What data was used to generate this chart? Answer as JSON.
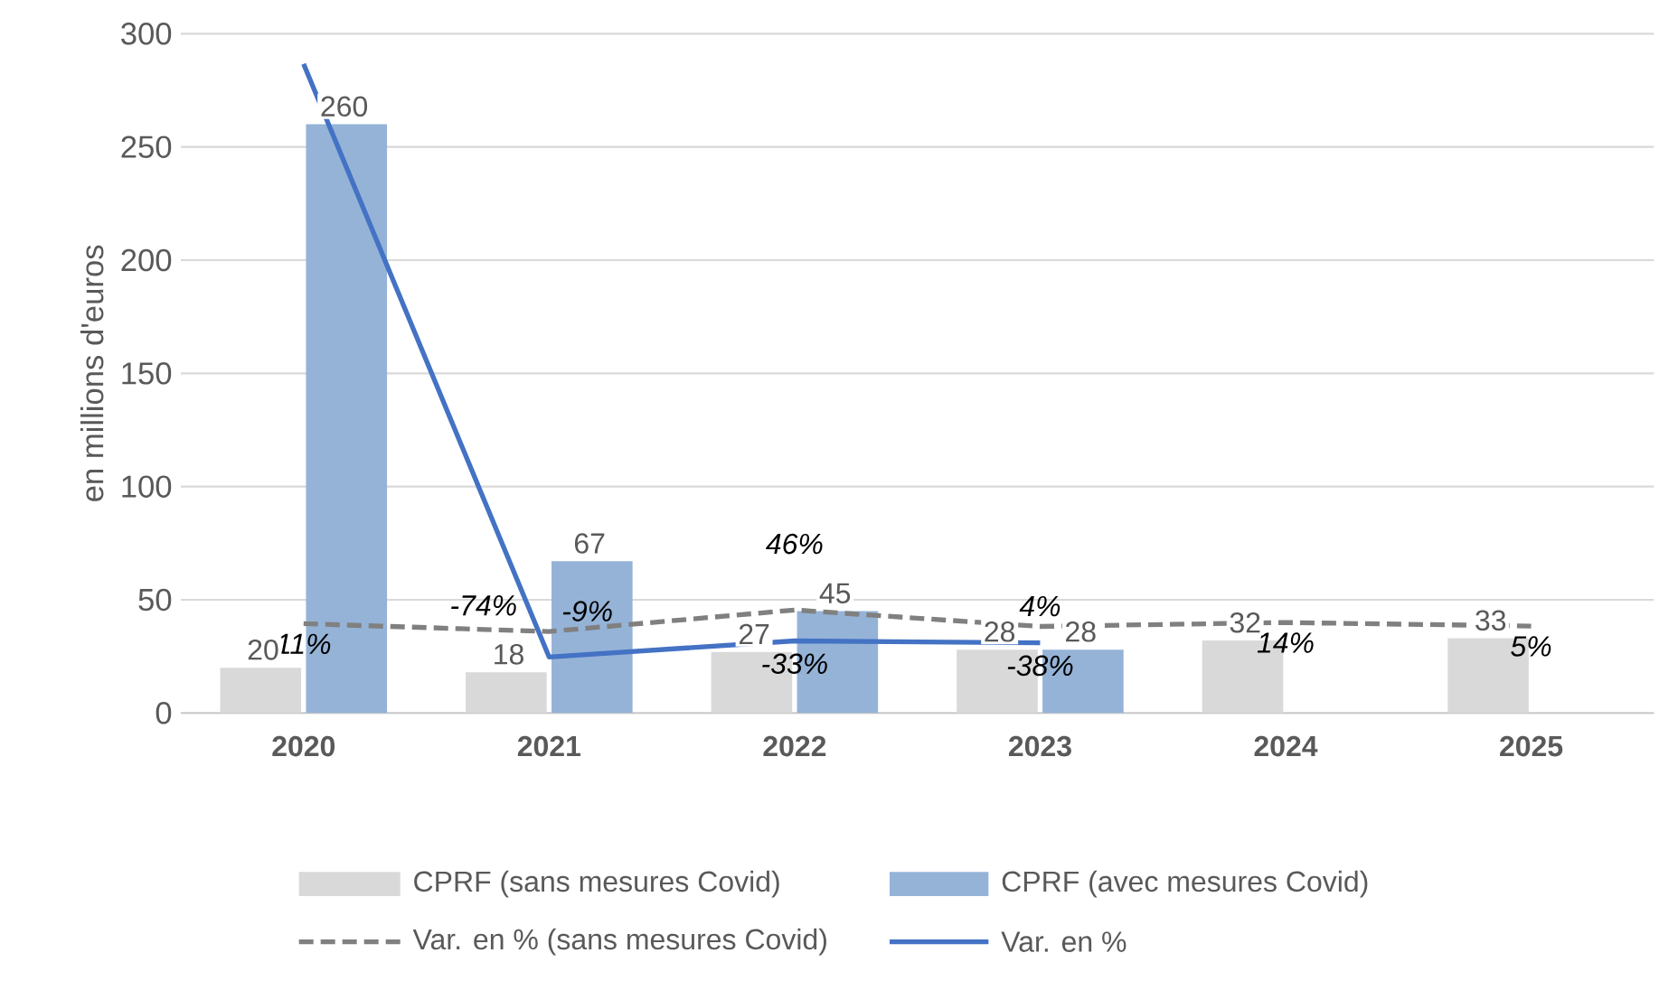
{
  "chart_data": {
    "type": "bar",
    "ylabel": "en millions d'euros",
    "categories": [
      "2020",
      "2021",
      "2022",
      "2023",
      "2024",
      "2025"
    ],
    "ylim": [
      0,
      300
    ],
    "yticks": [
      0,
      50,
      100,
      150,
      200,
      250,
      300
    ],
    "y2lim": [
      -217,
      1517
    ],
    "grid": "y",
    "legend": "bottom",
    "series": [
      {
        "name": "CPRF (sans mesures Covid)",
        "color": "#d9d9d9",
        "values": [
          20,
          18,
          27,
          28,
          32,
          33
        ],
        "value_labels": [
          "20",
          "18",
          "27",
          "28",
          "32",
          "33"
        ]
      },
      {
        "name": "CPRF (avec mesures Covid)",
        "color": "#95b3d7",
        "values": [
          260,
          67,
          45,
          28,
          null,
          null
        ],
        "value_labels": [
          "260",
          "67",
          "45",
          "28",
          null,
          null
        ]
      },
      {
        "name": "Var. en % (sans mesures Covid)",
        "type": "line",
        "axis": "y2",
        "line_style": "dashed",
        "color": "#808080",
        "values": [
          11,
          -9,
          46,
          4,
          14,
          5
        ],
        "value_labels": [
          "11%",
          "-9%",
          "46%",
          "4%",
          "14%",
          "5%"
        ]
      },
      {
        "name": "Var. en %",
        "type": "line",
        "axis": "y2",
        "line_style": "solid",
        "color": "#4472c4",
        "values": [
          1440,
          -74,
          -33,
          -38,
          null,
          null
        ],
        "value_labels": [
          null,
          "-74%",
          "-33%",
          "-38%",
          null,
          null
        ]
      }
    ]
  }
}
